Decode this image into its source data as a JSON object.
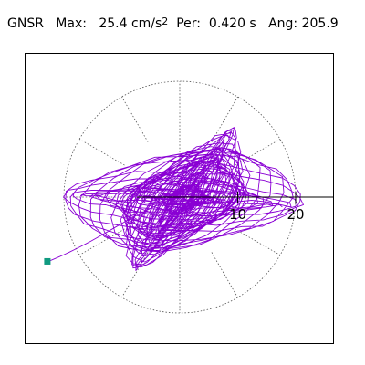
{
  "header": {
    "station": "GNSR",
    "max_label": "Max:",
    "max_value": "25.4 cm/s",
    "max_exponent": "2",
    "per_label": "Per:",
    "per_value": "0.420 s",
    "ang_label": "Ang:",
    "ang_value": "205.9"
  },
  "colors": {
    "trace": "#8a00d4",
    "marker": "#109a80",
    "grid": "#555555",
    "frame": "#000000"
  },
  "chart_data": {
    "type": "polar-particle-motion",
    "radial_ticks": [
      {
        "value": 10,
        "label": "10"
      },
      {
        "value": 20,
        "label": "20"
      }
    ],
    "radial_grid_circles": [
      20
    ],
    "angular_grid_step_deg": 30,
    "radial_max": 20,
    "peak_amplitude": 25.4,
    "peak_angle_deg": 205.9,
    "trace_style": "dense overlapping ellipses, predominantly oriented from lower-left to upper-right (azimuth ~206/26 deg)",
    "trace_samples": 1400
  }
}
